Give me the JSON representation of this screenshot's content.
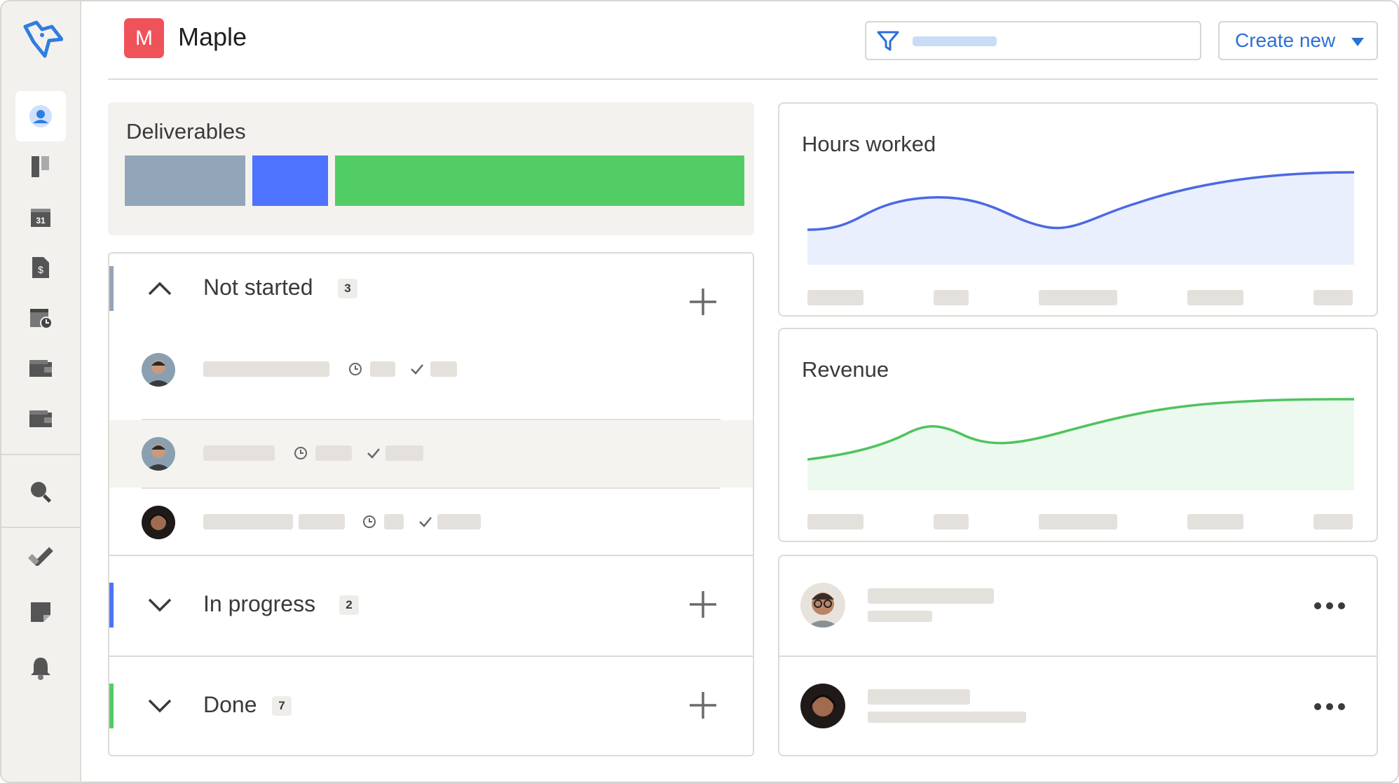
{
  "app": {
    "brand_initial": "M",
    "brand_name": "Maple",
    "accent_color": "#2c6fd6"
  },
  "sidebar": {
    "items": [
      {
        "icon": "user-circle-icon",
        "active": true
      },
      {
        "icon": "board-icon"
      },
      {
        "icon": "calendar-icon",
        "text": "31"
      },
      {
        "icon": "invoice-icon",
        "text": "$"
      },
      {
        "icon": "timesheet-icon"
      },
      {
        "icon": "wallet-icon"
      },
      {
        "icon": "wallet-icon"
      },
      {
        "icon": "search-icon"
      },
      {
        "icon": "check-icon"
      },
      {
        "icon": "sticky-note-icon"
      },
      {
        "icon": "bell-icon"
      }
    ]
  },
  "header": {
    "filter_icon": "filter-icon",
    "create_label": "Create new"
  },
  "deliverables": {
    "title": "Deliverables",
    "segments": [
      {
        "color": "#93a5b8"
      },
      {
        "color": "#4d73ff"
      },
      {
        "color": "#52cd66"
      }
    ]
  },
  "task_groups": [
    {
      "label": "Not started",
      "count": "3",
      "expanded": true,
      "accent": "#93a5b8"
    },
    {
      "label": "In progress",
      "count": "2",
      "expanded": false,
      "accent": "#4d73ff"
    },
    {
      "label": "Done",
      "count": "7",
      "expanded": false,
      "accent": "#52cd66"
    }
  ],
  "charts": {
    "hours": {
      "title": "Hours worked",
      "color": "#4b69e3",
      "fill": "#eaeffd"
    },
    "revenue": {
      "title": "Revenue",
      "color": "#4fc35e",
      "fill": "#ecf9ee"
    }
  }
}
